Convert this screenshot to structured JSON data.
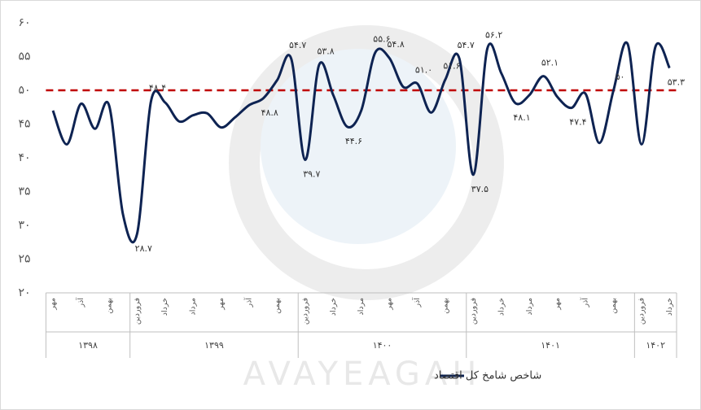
{
  "chart_data": {
    "type": "line",
    "categories": [
      "مهر",
      null,
      "آذر",
      null,
      "بهمن",
      null,
      "فروردین",
      null,
      "خرداد",
      null,
      "مرداد",
      null,
      "مهر",
      null,
      "آذر",
      null,
      "بهمن",
      null,
      "فروردین",
      null,
      "خرداد",
      null,
      "مرداد",
      null,
      "مهر",
      null,
      "آذر",
      null,
      "بهمن",
      null,
      "فروردین",
      null,
      "خرداد",
      null,
      "مرداد",
      null,
      "مهر",
      null,
      "آذر",
      null,
      "بهمن",
      null,
      "فروردین",
      null,
      "خرداد"
    ],
    "groups": [
      {
        "label": "۱۳۹۸",
        "count": 6
      },
      {
        "label": "۱۳۹۹",
        "count": 12
      },
      {
        "label": "۱۴۰۰",
        "count": 12
      },
      {
        "label": "۱۴۰۱",
        "count": 12
      },
      {
        "label": "۱۴۰۲",
        "count": 3
      }
    ],
    "series": [
      {
        "name": "شاخص شامخ کل اقتصاد",
        "color": "#0e2352",
        "values": [
          47,
          42,
          48,
          44.3,
          47.8,
          31.6,
          28.7,
          48.4,
          48.2,
          45.4,
          46.3,
          46.6,
          44.5,
          46,
          47.8,
          48.8,
          51.5,
          54.7,
          39.7,
          53.8,
          49.3,
          44.6,
          47,
          55.6,
          54.8,
          50.5,
          51.0,
          46.7,
          51.6,
          54.7,
          37.5,
          56.2,
          52.5,
          48.1,
          49.3,
          52.1,
          49,
          47.4,
          49.5,
          42.2,
          50,
          56.9,
          42,
          56.5,
          53.3
        ],
        "value_labels": [
          null,
          null,
          null,
          null,
          null,
          null,
          "۲۸.۷",
          "۴۸.۴",
          null,
          null,
          null,
          null,
          null,
          null,
          null,
          "۴۸.۸",
          null,
          "۵۴.۷",
          "۳۹.۷",
          "۵۳.۸",
          null,
          "۴۴.۶",
          null,
          "۵۵.۶",
          "۵۴.۸",
          null,
          "۵۱.۰",
          null,
          "۵۱.۶",
          "۵۴.۷",
          "۳۷.۵",
          "۵۶.۲",
          null,
          "۴۸.۱",
          null,
          "۵۲.۱",
          null,
          "۴۷.۴",
          null,
          null,
          "۵۰",
          null,
          null,
          null,
          "۵۳.۳"
        ]
      }
    ],
    "reference_line": {
      "value": 50,
      "color": "#c00000"
    },
    "ylim": [
      20,
      60
    ],
    "yticks": [
      {
        "value": 20,
        "label": "۲۰"
      },
      {
        "value": 25,
        "label": "۲۵"
      },
      {
        "value": 30,
        "label": "۳۰"
      },
      {
        "value": 35,
        "label": "۳۵"
      },
      {
        "value": 40,
        "label": "۴۰"
      },
      {
        "value": 45,
        "label": "۴۵"
      },
      {
        "value": 50,
        "label": "۵۰"
      },
      {
        "value": 55,
        "label": "۵۵"
      },
      {
        "value": 60,
        "label": "۶۰"
      }
    ],
    "watermark": "AVAYEAGAH",
    "legend": "bottom"
  }
}
